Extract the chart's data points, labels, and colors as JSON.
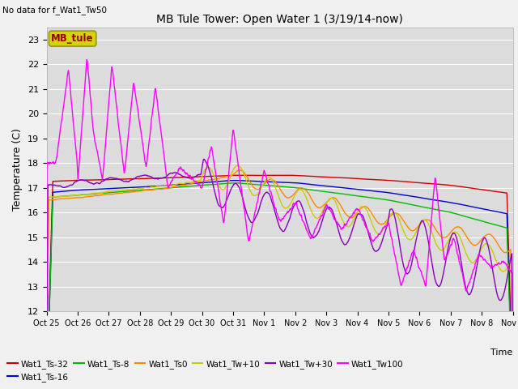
{
  "title": "MB Tule Tower: Open Water 1 (3/19/14-now)",
  "subtitle": "No data for f_Wat1_Tw50",
  "xlabel": "Time",
  "ylabel": "Temperature (C)",
  "ylim": [
    12.0,
    23.5
  ],
  "yticks": [
    12.0,
    13.0,
    14.0,
    15.0,
    16.0,
    17.0,
    18.0,
    19.0,
    20.0,
    21.0,
    22.0,
    23.0
  ],
  "bg_color": "#dcdcdc",
  "plot_bg": "#dcdcdc",
  "legend_box_text": "MB_tule",
  "legend_box_color": "#d4d400",
  "legend_box_text_color": "#990000",
  "series": {
    "Wat1_Ts-32": {
      "color": "#cc0000",
      "lw": 1.0
    },
    "Wat1_Ts-16": {
      "color": "#0000cc",
      "lw": 1.0
    },
    "Wat1_Ts-8": {
      "color": "#00bb00",
      "lw": 1.0
    },
    "Wat1_Ts0": {
      "color": "#ff8800",
      "lw": 1.0
    },
    "Wat1_Tw+10": {
      "color": "#cccc00",
      "lw": 1.0
    },
    "Wat1_Tw+30": {
      "color": "#8800bb",
      "lw": 1.0
    },
    "Wat1_Tw100": {
      "color": "#ff00ff",
      "lw": 1.0
    }
  },
  "xtick_labels": [
    "Oct 25",
    "Oct 26",
    "Oct 27",
    "Oct 28",
    "Oct 29",
    "Oct 30",
    "Oct 31",
    "Nov 1",
    "Nov 2",
    "Nov 3",
    "Nov 4",
    "Nov 5",
    "Nov 6",
    "Nov 7",
    "Nov 8",
    "Nov 9"
  ],
  "n_points": 1500
}
